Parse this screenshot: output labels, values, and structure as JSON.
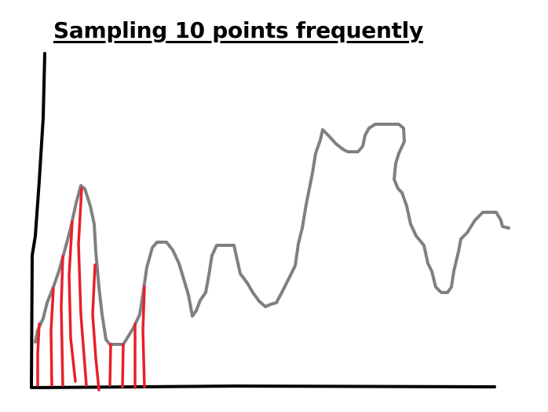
{
  "title": "Sampling 10 points frequently",
  "colors": {
    "axes": "#000000",
    "signal": "#808080",
    "samples": "#e8202a",
    "background": "#ffffff"
  },
  "sample_count": 10
}
